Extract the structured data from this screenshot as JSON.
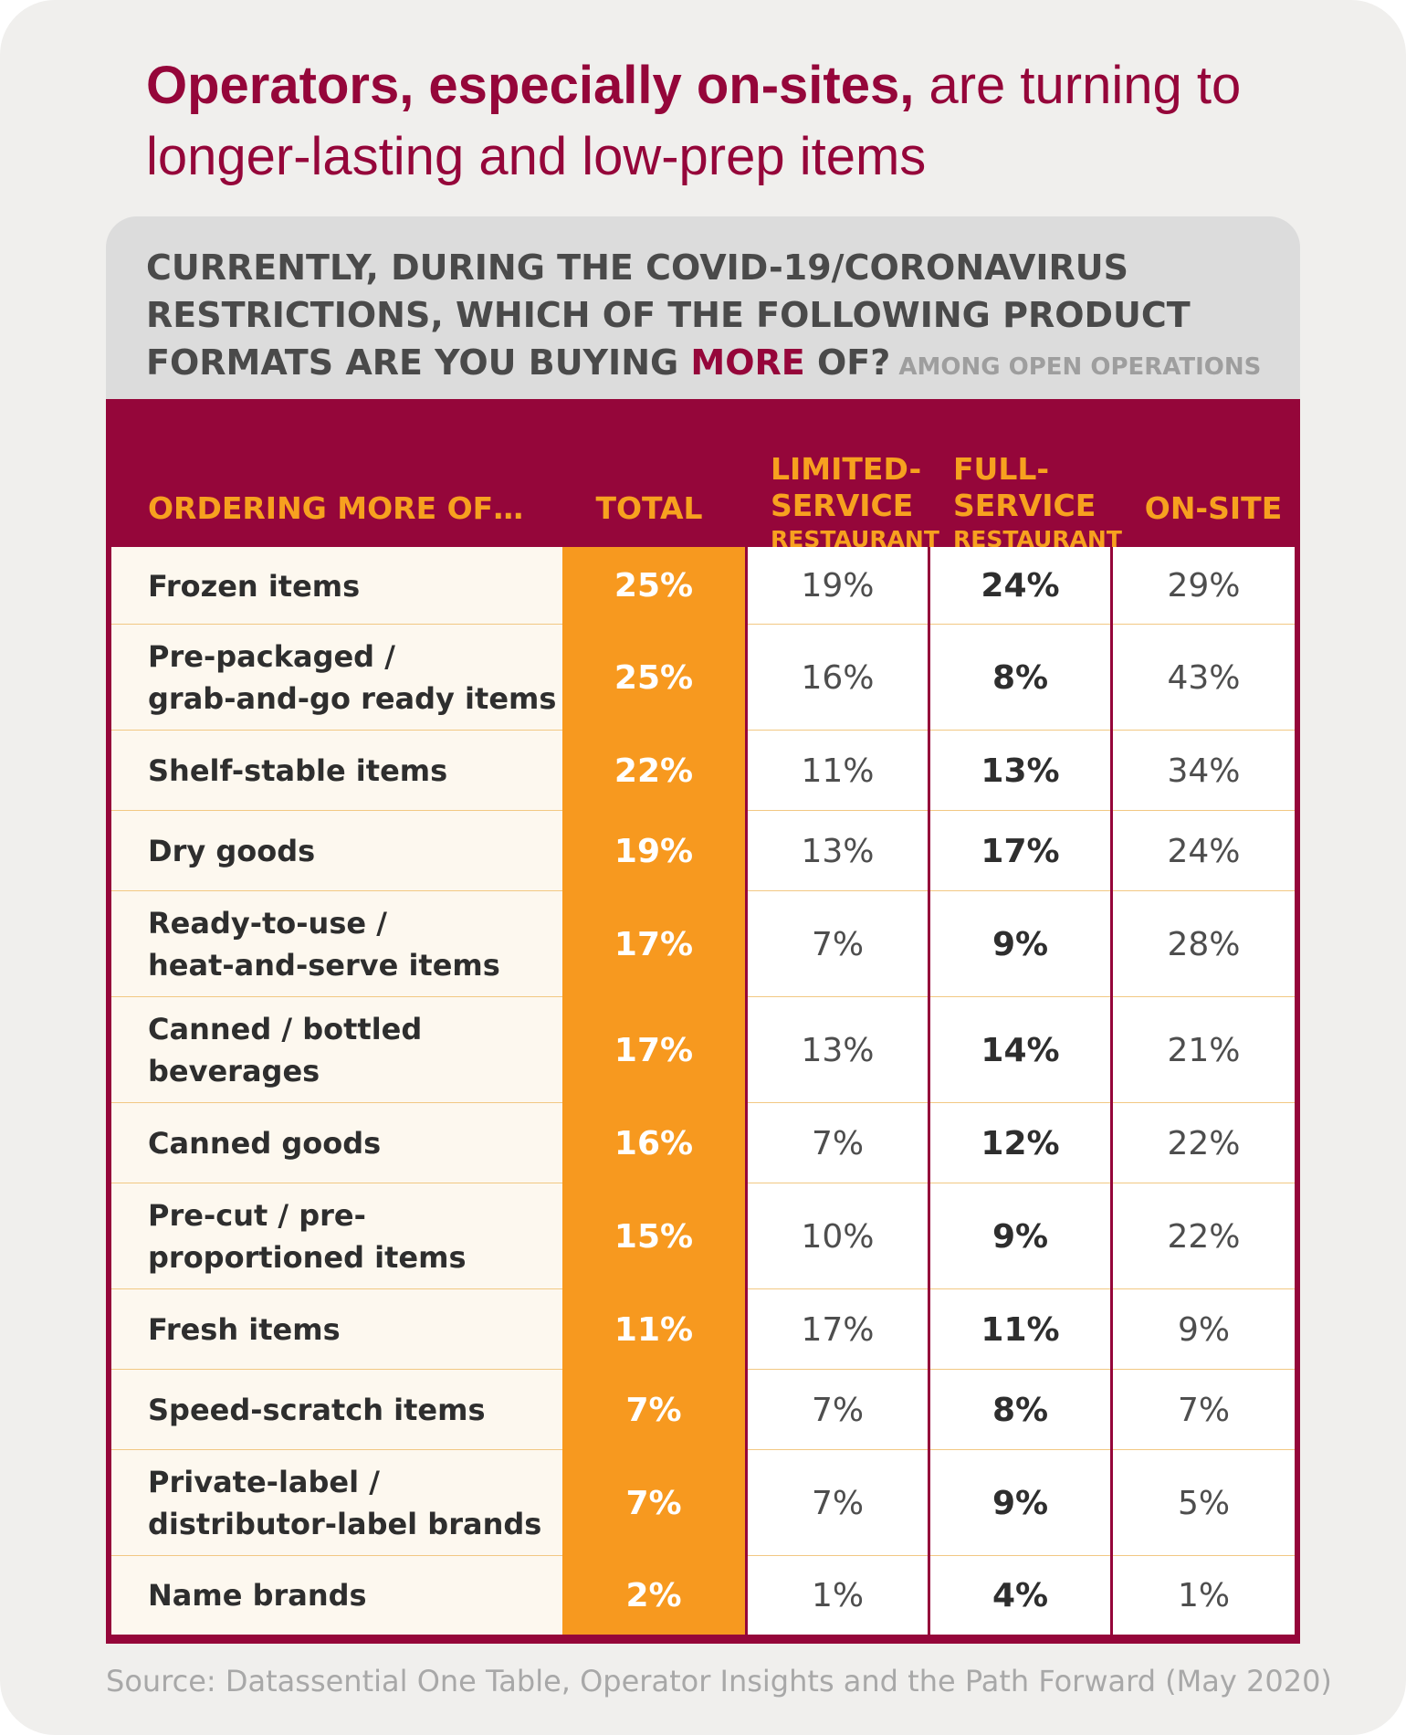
{
  "headline": {
    "bold": "Operators, especially on-sites,",
    "rest": " are turning to longer-lasting and low-prep items"
  },
  "question": {
    "part1": "CURRENTLY, DURING THE COVID-19/CORONAVIRUS RESTRICTIONS, WHICH OF THE FOLLOWING PRODUCT FORMATS ARE YOU BUYING ",
    "emphasis": "MORE",
    "part2": " OF?",
    "note": " AMONG OPEN OPERATIONS"
  },
  "chart_data": {
    "type": "table",
    "columns": [
      {
        "main": "ORDERING MORE OF…"
      },
      {
        "main": "TOTAL"
      },
      {
        "main": "LIMITED-\nSERVICE",
        "sub": "RESTAURANT"
      },
      {
        "main": "FULL-\nSERVICE",
        "sub": "RESTAURANT"
      },
      {
        "main": "ON-SITE"
      }
    ],
    "rows": [
      {
        "label": "Frozen items",
        "values": [
          "25%",
          "19%",
          "24%",
          "29%"
        ]
      },
      {
        "label": "Pre-packaged /\ngrab-and-go ready items",
        "values": [
          "25%",
          "16%",
          "8%",
          "43%"
        ]
      },
      {
        "label": "Shelf-stable items",
        "values": [
          "22%",
          "11%",
          "13%",
          "34%"
        ]
      },
      {
        "label": "Dry goods",
        "values": [
          "19%",
          "13%",
          "17%",
          "24%"
        ]
      },
      {
        "label": "Ready-to-use /\nheat-and-serve items",
        "values": [
          "17%",
          "7%",
          "9%",
          "28%"
        ]
      },
      {
        "label": "Canned / bottled\nbeverages",
        "values": [
          "17%",
          "13%",
          "14%",
          "21%"
        ]
      },
      {
        "label": "Canned goods",
        "values": [
          "16%",
          "7%",
          "12%",
          "22%"
        ]
      },
      {
        "label": "Pre-cut / pre-\nproportioned items",
        "values": [
          "15%",
          "10%",
          "9%",
          "22%"
        ]
      },
      {
        "label": "Fresh items",
        "values": [
          "11%",
          "17%",
          "11%",
          "9%"
        ]
      },
      {
        "label": "Speed-scratch items",
        "values": [
          "7%",
          "7%",
          "8%",
          "7%"
        ]
      },
      {
        "label": "Private-label /\ndistributor-label brands",
        "values": [
          "7%",
          "7%",
          "9%",
          "5%"
        ]
      },
      {
        "label": "Name brands",
        "values": [
          "2%",
          "1%",
          "4%",
          "1%"
        ]
      }
    ]
  },
  "colors": {
    "brand": "#95063a",
    "accent": "#f7991f",
    "header_text": "#f7a11f",
    "row_line": "#f2c883"
  },
  "source": "Source: Datassential One Table, Operator Insights and the Path Forward (May 2020)"
}
